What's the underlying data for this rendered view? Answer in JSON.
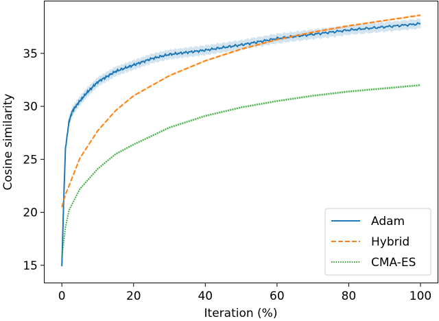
{
  "chart_data": {
    "type": "line",
    "title": "",
    "xlabel": "Iteration (%)",
    "ylabel": "Cosine similarity",
    "xlim": [
      -6,
      104
    ],
    "ylim": [
      13.3,
      40.3
    ],
    "xticks": [
      0,
      20,
      40,
      60,
      80,
      100
    ],
    "yticks": [
      15,
      20,
      25,
      30,
      35
    ],
    "grid": false,
    "legend_position": "lower-right",
    "series": [
      {
        "name": "Adam",
        "color": "#1f77b4",
        "style": "solid",
        "band": 0.45,
        "x": [
          0,
          0.5,
          1,
          2,
          3,
          5,
          7,
          10,
          15,
          20,
          25,
          30,
          40,
          50,
          60,
          70,
          80,
          90,
          100
        ],
        "y": [
          14.9,
          21.0,
          26.0,
          28.6,
          29.6,
          30.5,
          31.3,
          32.3,
          33.3,
          33.9,
          34.5,
          34.9,
          35.3,
          35.8,
          36.4,
          36.8,
          37.2,
          37.5,
          37.8
        ]
      },
      {
        "name": "Hybrid",
        "color": "#ff7f0e",
        "style": "dashed",
        "band": 0.1,
        "x": [
          0,
          1,
          2,
          5,
          10,
          15,
          20,
          30,
          40,
          50,
          60,
          70,
          80,
          90,
          100
        ],
        "y": [
          20.5,
          21.7,
          22.5,
          25.1,
          27.7,
          29.6,
          31.0,
          32.9,
          34.3,
          35.4,
          36.3,
          37.0,
          37.6,
          38.1,
          38.6
        ]
      },
      {
        "name": "CMA-ES",
        "color": "#2ca02c",
        "style": "dotted",
        "band": 0.12,
        "x": [
          0,
          1,
          2,
          5,
          10,
          15,
          20,
          30,
          40,
          50,
          60,
          70,
          80,
          90,
          100
        ],
        "y": [
          15.8,
          18.6,
          20.2,
          22.2,
          24.1,
          25.5,
          26.4,
          28.0,
          29.1,
          29.9,
          30.5,
          31.0,
          31.4,
          31.7,
          32.0
        ]
      }
    ]
  }
}
